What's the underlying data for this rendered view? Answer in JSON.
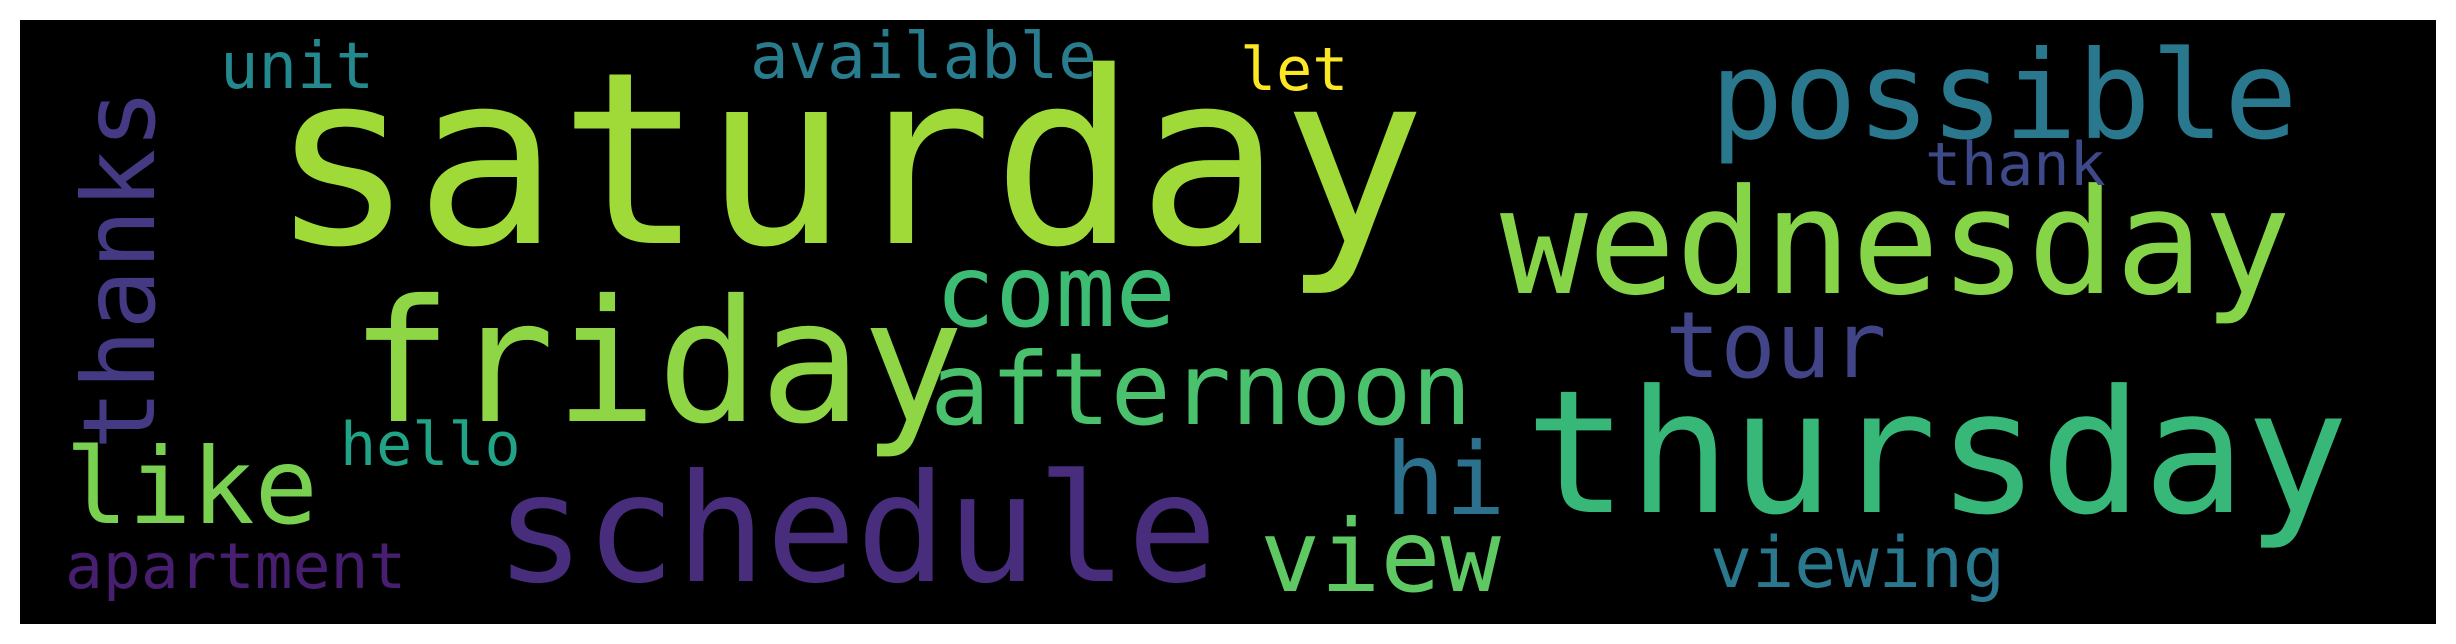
{
  "words": [
    {
      "id": "saturday",
      "text": "saturday",
      "color": "#a0da39"
    },
    {
      "id": "wednesday",
      "text": "wednesday",
      "color": "#86d549"
    },
    {
      "id": "thursday",
      "text": "thursday",
      "color": "#37b878"
    },
    {
      "id": "friday",
      "text": "friday",
      "color": "#8ed645"
    },
    {
      "id": "schedule",
      "text": "schedule",
      "color": "#472d7b"
    },
    {
      "id": "possible",
      "text": "possible",
      "color": "#2a788e"
    },
    {
      "id": "afternoon",
      "text": "afternoon",
      "color": "#4ac16d"
    },
    {
      "id": "come",
      "text": "come",
      "color": "#3dbc74"
    },
    {
      "id": "thanks",
      "text": "thanks",
      "color": "#443a83"
    },
    {
      "id": "like",
      "text": "like",
      "color": "#7ad151"
    },
    {
      "id": "view",
      "text": "view",
      "color": "#5ec962"
    },
    {
      "id": "tour",
      "text": "tour",
      "color": "#414487"
    },
    {
      "id": "viewing",
      "text": "viewing",
      "color": "#2a788e"
    },
    {
      "id": "hi",
      "text": "hi",
      "color": "#2c728e"
    },
    {
      "id": "apartment",
      "text": "apartment",
      "color": "#481f70"
    },
    {
      "id": "available",
      "text": "available",
      "color": "#287c8e"
    },
    {
      "id": "unit",
      "text": "unit",
      "color": "#23898e"
    },
    {
      "id": "let",
      "text": "let",
      "color": "#fde725"
    },
    {
      "id": "thank",
      "text": "thank",
      "color": "#3e4989"
    },
    {
      "id": "hello",
      "text": "hello",
      "color": "#20a386"
    }
  ]
}
